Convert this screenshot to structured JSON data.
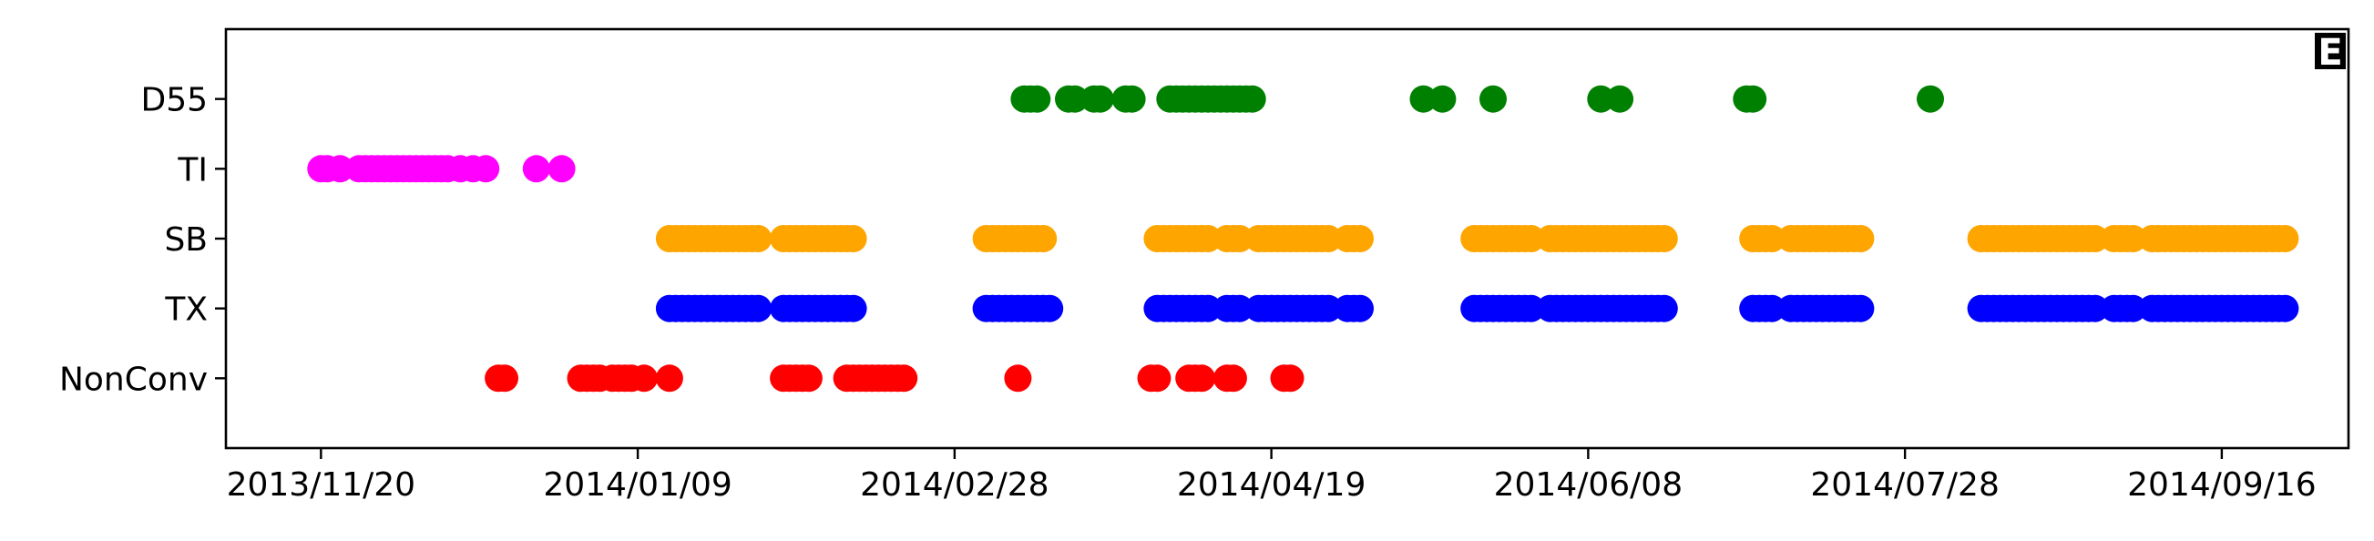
{
  "chart_data": {
    "type": "scatter",
    "title": "",
    "xlabel": "",
    "ylabel": "",
    "panel_label": "E",
    "categories": [
      "NonConv",
      "TX",
      "SB",
      "TI",
      "D55"
    ],
    "xlim": [
      "2013-11-05",
      "2014-10-06"
    ],
    "ylim": [
      -1,
      5
    ],
    "x_ticks": [
      "2013/11/20",
      "2014/01/09",
      "2014/02/28",
      "2014/04/19",
      "2014/06/08",
      "2014/07/28",
      "2014/09/16"
    ],
    "grid": false,
    "legend": "none",
    "series": [
      {
        "category": "D55",
        "color": "#008000",
        "dates": [
          "2014-03-11",
          "2014-03-12",
          "2014-03-13",
          "2014-03-18",
          "2014-03-19",
          "2014-03-22",
          "2014-03-23",
          "2014-03-27",
          "2014-03-28",
          "2014-04-03",
          "2014-04-04",
          "2014-04-05",
          "2014-04-06",
          "2014-04-07",
          "2014-04-08",
          "2014-04-09",
          "2014-04-10",
          "2014-04-11",
          "2014-04-12",
          "2014-04-13",
          "2014-04-14",
          "2014-04-15",
          "2014-04-16",
          "2014-05-13",
          "2014-05-16",
          "2014-05-24",
          "2014-06-10",
          "2014-06-13",
          "2014-07-03",
          "2014-07-04",
          "2014-08-01"
        ]
      },
      {
        "category": "TI",
        "color": "#ff00ff",
        "dates": [
          "2013-11-20",
          "2013-11-21",
          "2013-11-23",
          "2013-11-26",
          "2013-11-27",
          "2013-11-28",
          "2013-11-29",
          "2013-11-30",
          "2013-12-01",
          "2013-12-02",
          "2013-12-03",
          "2013-12-04",
          "2013-12-05",
          "2013-12-06",
          "2013-12-07",
          "2013-12-08",
          "2013-12-09",
          "2013-12-10",
          "2013-12-12",
          "2013-12-14",
          "2013-12-16",
          "2013-12-24",
          "2013-12-28"
        ]
      },
      {
        "category": "SB",
        "color": "#ffa500",
        "dates": [
          "2014-01-14",
          "2014-01-15",
          "2014-01-16",
          "2014-01-17",
          "2014-01-18",
          "2014-01-19",
          "2014-01-20",
          "2014-01-21",
          "2014-01-22",
          "2014-01-23",
          "2014-01-24",
          "2014-01-25",
          "2014-01-26",
          "2014-01-27",
          "2014-01-28",
          "2014-02-01",
          "2014-02-02",
          "2014-02-03",
          "2014-02-04",
          "2014-02-05",
          "2014-02-06",
          "2014-02-07",
          "2014-02-08",
          "2014-02-09",
          "2014-02-10",
          "2014-02-11",
          "2014-02-12",
          "2014-03-05",
          "2014-03-06",
          "2014-03-07",
          "2014-03-08",
          "2014-03-09",
          "2014-03-10",
          "2014-03-11",
          "2014-03-12",
          "2014-03-13",
          "2014-03-14",
          "2014-04-01",
          "2014-04-02",
          "2014-04-03",
          "2014-04-04",
          "2014-04-05",
          "2014-04-06",
          "2014-04-07",
          "2014-04-08",
          "2014-04-09",
          "2014-04-12",
          "2014-04-13",
          "2014-04-14",
          "2014-04-17",
          "2014-04-18",
          "2014-04-19",
          "2014-04-20",
          "2014-04-21",
          "2014-04-22",
          "2014-04-23",
          "2014-04-24",
          "2014-04-25",
          "2014-04-26",
          "2014-04-27",
          "2014-04-28",
          "2014-05-01",
          "2014-05-02",
          "2014-05-03",
          "2014-05-21",
          "2014-05-22",
          "2014-05-23",
          "2014-05-24",
          "2014-05-25",
          "2014-05-26",
          "2014-05-27",
          "2014-05-28",
          "2014-05-29",
          "2014-05-30",
          "2014-06-02",
          "2014-06-03",
          "2014-06-04",
          "2014-06-05",
          "2014-06-06",
          "2014-06-07",
          "2014-06-08",
          "2014-06-09",
          "2014-06-10",
          "2014-06-11",
          "2014-06-12",
          "2014-06-13",
          "2014-06-14",
          "2014-06-15",
          "2014-06-16",
          "2014-06-17",
          "2014-06-18",
          "2014-06-19",
          "2014-06-20",
          "2014-07-04",
          "2014-07-05",
          "2014-07-06",
          "2014-07-07",
          "2014-07-10",
          "2014-07-11",
          "2014-07-12",
          "2014-07-13",
          "2014-07-14",
          "2014-07-15",
          "2014-07-16",
          "2014-07-17",
          "2014-07-18",
          "2014-07-19",
          "2014-07-20",
          "2014-07-21",
          "2014-08-09",
          "2014-08-10",
          "2014-08-11",
          "2014-08-12",
          "2014-08-13",
          "2014-08-14",
          "2014-08-15",
          "2014-08-16",
          "2014-08-17",
          "2014-08-18",
          "2014-08-19",
          "2014-08-20",
          "2014-08-21",
          "2014-08-22",
          "2014-08-23",
          "2014-08-24",
          "2014-08-25",
          "2014-08-26",
          "2014-08-27",
          "2014-08-30",
          "2014-08-31",
          "2014-09-01",
          "2014-09-02",
          "2014-09-05",
          "2014-09-06",
          "2014-09-07",
          "2014-09-08",
          "2014-09-09",
          "2014-09-10",
          "2014-09-11",
          "2014-09-12",
          "2014-09-13",
          "2014-09-14",
          "2014-09-15",
          "2014-09-16",
          "2014-09-17",
          "2014-09-18",
          "2014-09-19",
          "2014-09-20",
          "2014-09-21",
          "2014-09-22",
          "2014-09-23",
          "2014-09-24",
          "2014-09-25",
          "2014-09-26"
        ]
      },
      {
        "category": "TX",
        "color": "#0000ff",
        "dates": [
          "2014-01-14",
          "2014-01-15",
          "2014-01-16",
          "2014-01-17",
          "2014-01-18",
          "2014-01-19",
          "2014-01-20",
          "2014-01-21",
          "2014-01-22",
          "2014-01-23",
          "2014-01-24",
          "2014-01-25",
          "2014-01-26",
          "2014-01-27",
          "2014-01-28",
          "2014-02-01",
          "2014-02-02",
          "2014-02-03",
          "2014-02-04",
          "2014-02-05",
          "2014-02-06",
          "2014-02-07",
          "2014-02-08",
          "2014-02-09",
          "2014-02-10",
          "2014-02-11",
          "2014-02-12",
          "2014-03-05",
          "2014-03-06",
          "2014-03-07",
          "2014-03-08",
          "2014-03-09",
          "2014-03-10",
          "2014-03-11",
          "2014-03-12",
          "2014-03-13",
          "2014-03-14",
          "2014-03-15",
          "2014-04-01",
          "2014-04-02",
          "2014-04-03",
          "2014-04-04",
          "2014-04-05",
          "2014-04-06",
          "2014-04-07",
          "2014-04-08",
          "2014-04-09",
          "2014-04-12",
          "2014-04-13",
          "2014-04-14",
          "2014-04-17",
          "2014-04-18",
          "2014-04-19",
          "2014-04-20",
          "2014-04-21",
          "2014-04-22",
          "2014-04-23",
          "2014-04-24",
          "2014-04-25",
          "2014-04-26",
          "2014-04-27",
          "2014-04-28",
          "2014-05-01",
          "2014-05-02",
          "2014-05-03",
          "2014-05-21",
          "2014-05-22",
          "2014-05-23",
          "2014-05-24",
          "2014-05-25",
          "2014-05-26",
          "2014-05-27",
          "2014-05-28",
          "2014-05-29",
          "2014-05-30",
          "2014-06-02",
          "2014-06-03",
          "2014-06-04",
          "2014-06-05",
          "2014-06-06",
          "2014-06-07",
          "2014-06-08",
          "2014-06-09",
          "2014-06-10",
          "2014-06-11",
          "2014-06-12",
          "2014-06-13",
          "2014-06-14",
          "2014-06-15",
          "2014-06-16",
          "2014-06-17",
          "2014-06-18",
          "2014-06-19",
          "2014-06-20",
          "2014-07-04",
          "2014-07-05",
          "2014-07-06",
          "2014-07-07",
          "2014-07-10",
          "2014-07-11",
          "2014-07-12",
          "2014-07-13",
          "2014-07-14",
          "2014-07-15",
          "2014-07-16",
          "2014-07-17",
          "2014-07-18",
          "2014-07-19",
          "2014-07-20",
          "2014-07-21",
          "2014-08-09",
          "2014-08-10",
          "2014-08-11",
          "2014-08-12",
          "2014-08-13",
          "2014-08-14",
          "2014-08-15",
          "2014-08-16",
          "2014-08-17",
          "2014-08-18",
          "2014-08-19",
          "2014-08-20",
          "2014-08-21",
          "2014-08-22",
          "2014-08-23",
          "2014-08-24",
          "2014-08-25",
          "2014-08-26",
          "2014-08-27",
          "2014-08-30",
          "2014-08-31",
          "2014-09-01",
          "2014-09-02",
          "2014-09-05",
          "2014-09-06",
          "2014-09-07",
          "2014-09-08",
          "2014-09-09",
          "2014-09-10",
          "2014-09-11",
          "2014-09-12",
          "2014-09-13",
          "2014-09-14",
          "2014-09-15",
          "2014-09-16",
          "2014-09-17",
          "2014-09-18",
          "2014-09-19",
          "2014-09-20",
          "2014-09-21",
          "2014-09-22",
          "2014-09-23",
          "2014-09-24",
          "2014-09-25",
          "2014-09-26"
        ]
      },
      {
        "category": "NonConv",
        "color": "#ff0000",
        "dates": [
          "2013-12-18",
          "2013-12-19",
          "2013-12-31",
          "2014-01-01",
          "2014-01-02",
          "2014-01-03",
          "2014-01-05",
          "2014-01-06",
          "2014-01-07",
          "2014-01-08",
          "2014-01-10",
          "2014-01-14",
          "2014-02-01",
          "2014-02-02",
          "2014-02-03",
          "2014-02-04",
          "2014-02-05",
          "2014-02-11",
          "2014-02-12",
          "2014-02-13",
          "2014-02-14",
          "2014-02-15",
          "2014-02-16",
          "2014-02-17",
          "2014-02-18",
          "2014-02-19",
          "2014-02-20",
          "2014-03-10",
          "2014-03-31",
          "2014-04-01",
          "2014-04-06",
          "2014-04-07",
          "2014-04-08",
          "2014-04-12",
          "2014-04-13",
          "2014-04-21",
          "2014-04-22"
        ]
      }
    ]
  }
}
